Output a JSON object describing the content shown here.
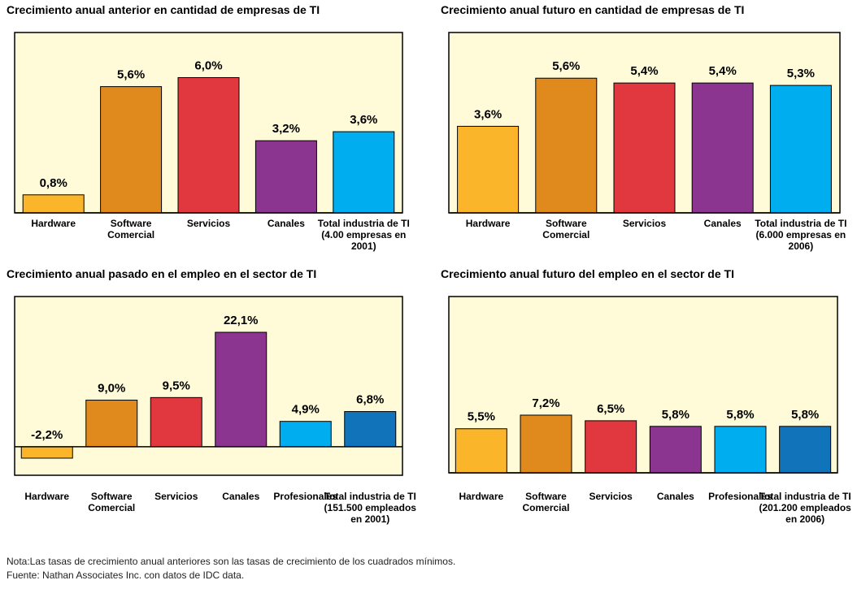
{
  "chart_data": [
    {
      "type": "bar",
      "title": "Crecimiento anual anterior en cantidad de empresas de TI",
      "categories": [
        "Hardware",
        "Software Comercial",
        "Servicios",
        "Canales",
        "Total industria de TI (4.00 empresas en 2001)"
      ],
      "values": [
        0.8,
        5.6,
        6.0,
        3.2,
        3.6
      ],
      "value_labels": [
        "0,8%",
        "5,6%",
        "6,0%",
        "3,2%",
        "3,6%"
      ],
      "colors": [
        "#fbb52a",
        "#e0891c",
        "#e1383f",
        "#8b3590",
        "#00aeef"
      ],
      "ylim": [
        0,
        8
      ]
    },
    {
      "type": "bar",
      "title": "Crecimiento anual futuro en cantidad de empresas de TI",
      "categories": [
        "Hardware",
        "Software Comercial",
        "Servicios",
        "Canales",
        "Total industria de TI (6.000 empresas en 2006)"
      ],
      "values": [
        3.6,
        5.6,
        5.4,
        5.4,
        5.3
      ],
      "value_labels": [
        "3,6%",
        "5,6%",
        "5,4%",
        "5,4%",
        "5,3%"
      ],
      "colors": [
        "#fbb52a",
        "#e0891c",
        "#e1383f",
        "#8b3590",
        "#00aeef"
      ],
      "ylim": [
        0,
        7.5
      ]
    },
    {
      "type": "bar",
      "title": "Crecimiento anual pasado en el empleo en el sector de TI",
      "categories": [
        "Hardware",
        "Software Comercial",
        "Servicios",
        "Canales",
        "Profesionales",
        "Total industria de TI (151.500 empleados en 2001)"
      ],
      "values": [
        -2.2,
        9.0,
        9.5,
        22.1,
        4.9,
        6.8
      ],
      "value_labels": [
        "-2,2%",
        "9,0%",
        "9,5%",
        "22,1%",
        "4,9%",
        "6,8%"
      ],
      "colors": [
        "#fbb52a",
        "#e0891c",
        "#e1383f",
        "#8b3590",
        "#00aeef",
        "#1173b9"
      ],
      "ylim": [
        -5.5,
        29
      ]
    },
    {
      "type": "bar",
      "title": "Crecimiento anual futuro del empleo en el sector de TI",
      "categories": [
        "Hardware",
        "Software Comercial",
        "Servicios",
        "Canales",
        "Profesionales",
        "Total industria de TI (201.200 empleados en 2006)"
      ],
      "values": [
        5.5,
        7.2,
        6.5,
        5.8,
        5.8,
        5.8
      ],
      "value_labels": [
        "5,5%",
        "7,2%",
        "6,5%",
        "5,8%",
        "5,8%",
        "5,8%"
      ],
      "colors": [
        "#fbb52a",
        "#e0891c",
        "#e1383f",
        "#8b3590",
        "#00aeef",
        "#1173b9"
      ],
      "ylim": [
        0,
        22
      ]
    }
  ],
  "notes": [
    "Nota:Las tasas de crecimiento anual anteriores son las tasas de crecimiento de los cuadrados mínimos.",
    "Fuente: Nathan Associates Inc. con datos de IDC data."
  ]
}
